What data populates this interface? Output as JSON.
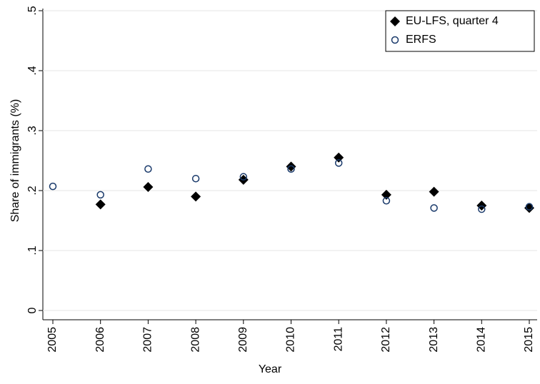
{
  "chart_data": {
    "type": "scatter",
    "x_label": "Year",
    "y_label": "Share of immigrants (%)",
    "x": [
      2005,
      2006,
      2007,
      2008,
      2009,
      2010,
      2011,
      2012,
      2013,
      2014,
      2015
    ],
    "series": [
      {
        "name": "EU-LFS, quarter 4",
        "color": "#000000",
        "marker": "diamond",
        "values": [
          null,
          0.177,
          0.206,
          0.19,
          0.218,
          0.24,
          0.255,
          0.193,
          0.198,
          0.175,
          0.171
        ]
      },
      {
        "name": "ERFS",
        "color": "#1a3a6b",
        "marker": "circle",
        "values": [
          0.207,
          0.193,
          0.236,
          0.22,
          0.223,
          0.236,
          0.246,
          0.183,
          0.171,
          0.169,
          0.173
        ]
      }
    ],
    "xlim": [
      2005,
      2015
    ],
    "xticks": [
      2005,
      2006,
      2007,
      2008,
      2009,
      2010,
      2011,
      2012,
      2013,
      2014,
      2015
    ],
    "ylim": [
      0,
      0.5
    ],
    "yticks": [
      0,
      {
        "value": 0.1,
        "label": ".1"
      },
      {
        "value": 0.2,
        "label": ".2"
      },
      {
        "value": 0.3,
        "label": ".3"
      },
      {
        "value": 0.4,
        "label": ".4"
      },
      {
        "value": 0.5,
        "label": ".5"
      }
    ],
    "grid": true,
    "legend_position": "top-right"
  }
}
